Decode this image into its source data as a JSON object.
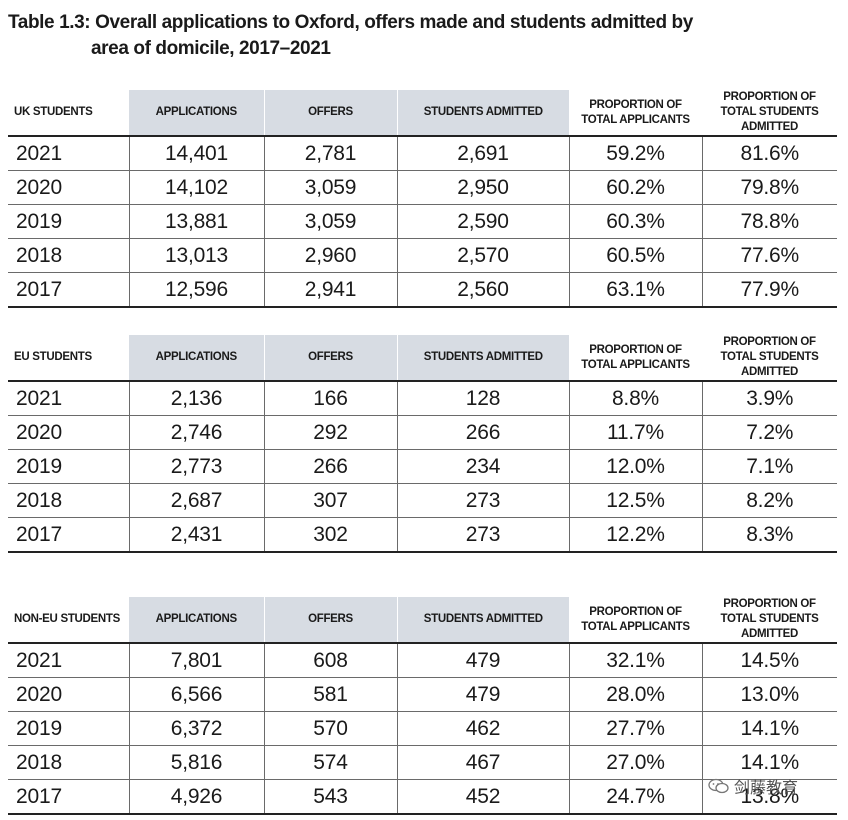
{
  "title": {
    "number": "Table 1.3:",
    "line1": "Overall applications to Oxford, offers made and students admitted by",
    "line2": "area of domicile, 2017–2021"
  },
  "columns": [
    "APPLICATIONS",
    "OFFERS",
    "STUDENTS ADMITTED",
    "PROPORTION OF TOTAL APPLICANTS",
    "PROPORTION OF TOTAL STUDENTS ADMITTED"
  ],
  "tables": [
    {
      "label": "UK STUDENTS",
      "rows": [
        [
          "2021",
          "14,401",
          "2,781",
          "2,691",
          "59.2%",
          "81.6%"
        ],
        [
          "2020",
          "14,102",
          "3,059",
          "2,950",
          "60.2%",
          "79.8%"
        ],
        [
          "2019",
          "13,881",
          "3,059",
          "2,590",
          "60.3%",
          "78.8%"
        ],
        [
          "2018",
          "13,013",
          "2,960",
          "2,570",
          "60.5%",
          "77.6%"
        ],
        [
          "2017",
          "12,596",
          "2,941",
          "2,560",
          "63.1%",
          "77.9%"
        ]
      ]
    },
    {
      "label": "EU STUDENTS",
      "rows": [
        [
          "2021",
          "2,136",
          "166",
          "128",
          "8.8%",
          "3.9%"
        ],
        [
          "2020",
          "2,746",
          "292",
          "266",
          "11.7%",
          "7.2%"
        ],
        [
          "2019",
          "2,773",
          "266",
          "234",
          "12.0%",
          "7.1%"
        ],
        [
          "2018",
          "2,687",
          "307",
          "273",
          "12.5%",
          "8.2%"
        ],
        [
          "2017",
          "2,431",
          "302",
          "273",
          "12.2%",
          "8.3%"
        ]
      ]
    },
    {
      "label": "NON-EU STUDENTS",
      "rows": [
        [
          "2021",
          "7,801",
          "608",
          "479",
          "32.1%",
          "14.5%"
        ],
        [
          "2020",
          "6,566",
          "581",
          "479",
          "28.0%",
          "13.0%"
        ],
        [
          "2019",
          "6,372",
          "570",
          "462",
          "27.7%",
          "14.1%"
        ],
        [
          "2018",
          "5,816",
          "574",
          "467",
          "27.0%",
          "14.1%"
        ],
        [
          "2017",
          "4,926",
          "543",
          "452",
          "24.7%",
          "13.8%"
        ]
      ]
    }
  ],
  "watermark": {
    "text": "剑藤教育",
    "icon": "wechat-icon"
  }
}
